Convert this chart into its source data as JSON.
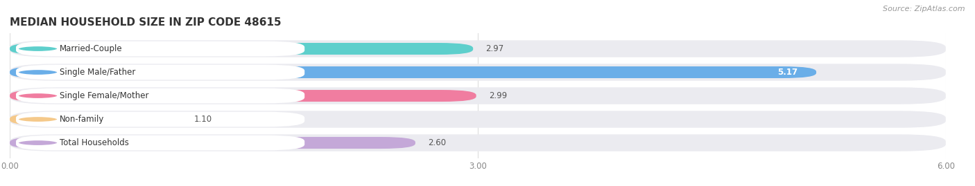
{
  "title": "MEDIAN HOUSEHOLD SIZE IN ZIP CODE 48615",
  "categories": [
    "Married-Couple",
    "Single Male/Father",
    "Single Female/Mother",
    "Non-family",
    "Total Households"
  ],
  "values": [
    2.97,
    5.17,
    2.99,
    1.1,
    2.6
  ],
  "bar_colors": [
    "#5ecfcc",
    "#6aaee8",
    "#f07da0",
    "#f5c98a",
    "#c4a8d8"
  ],
  "xlim": [
    0,
    6.0
  ],
  "xtick_labels": [
    "0.00",
    "3.00",
    "6.00"
  ],
  "xtick_values": [
    0.0,
    3.0,
    6.0
  ],
  "source_text": "Source: ZipAtlas.com",
  "bg_color": "#ffffff",
  "bar_bg_color": "#ebebf0",
  "label_bg_color": "#ffffff",
  "value_color_dark": "#555555",
  "value_color_light": "#ffffff",
  "title_color": "#333333",
  "grid_color": "#dddddd"
}
